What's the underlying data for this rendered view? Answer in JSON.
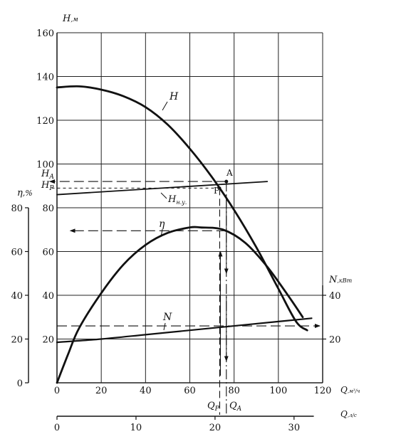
{
  "chart_data": {
    "type": "line",
    "axes": {
      "H": {
        "label": "H,м",
        "ticks": [
          0,
          20,
          40,
          60,
          80,
          100,
          120,
          140,
          160
        ],
        "range": [
          0,
          160
        ]
      },
      "eta": {
        "label": "η,%",
        "ticks": [
          0,
          20,
          40,
          60,
          80
        ],
        "range": [
          0,
          80
        ]
      },
      "N": {
        "label": "N,кВт",
        "ticks": [
          20,
          40
        ],
        "range": [
          0,
          160
        ]
      },
      "Q_m3h": {
        "label": "Q,м³/ч",
        "ticks": [
          0,
          20,
          40,
          60,
          80,
          100,
          120
        ],
        "range": [
          0,
          120
        ]
      },
      "Q_ls": {
        "label": "Q,л/с",
        "ticks": [
          0,
          10,
          20,
          30
        ]
      }
    },
    "series": [
      {
        "name": "H",
        "axis": "H",
        "points": [
          [
            0,
            135
          ],
          [
            10,
            135.5
          ],
          [
            20,
            134
          ],
          [
            30,
            131
          ],
          [
            40,
            126
          ],
          [
            50,
            118
          ],
          [
            60,
            107
          ],
          [
            70,
            94
          ],
          [
            80,
            79
          ],
          [
            90,
            62
          ],
          [
            100,
            43
          ],
          [
            108,
            28
          ],
          [
            113,
            24
          ]
        ]
      },
      {
        "name": "Hн.у.",
        "axis": "H",
        "points": [
          [
            0,
            86
          ],
          [
            95,
            92
          ]
        ]
      },
      {
        "name": "η",
        "axis": "eta",
        "points": [
          [
            0,
            0
          ],
          [
            5,
            13
          ],
          [
            10,
            25
          ],
          [
            20,
            41
          ],
          [
            30,
            54
          ],
          [
            40,
            63
          ],
          [
            50,
            68.5
          ],
          [
            60,
            71
          ],
          [
            65,
            71
          ],
          [
            75,
            70
          ],
          [
            85,
            64
          ],
          [
            95,
            53
          ],
          [
            105,
            39
          ],
          [
            111,
            30
          ]
        ]
      },
      {
        "name": "N",
        "axis": "N",
        "points": [
          [
            0,
            18.5
          ],
          [
            20,
            20
          ],
          [
            40,
            22
          ],
          [
            60,
            24
          ],
          [
            80,
            26
          ],
          [
            100,
            28
          ],
          [
            115,
            29.5
          ]
        ]
      }
    ],
    "annotations": [
      {
        "text": "A",
        "x": 78,
        "y": 92,
        "axis": "H"
      },
      {
        "text": "P",
        "x": 73,
        "y": 88,
        "axis": "H"
      },
      {
        "text": "HA",
        "axis": "H",
        "value": 92
      },
      {
        "text": "HP",
        "axis": "H",
        "value": 89
      },
      {
        "text": "QP",
        "axis": "Q_m3h",
        "value": 73.5
      },
      {
        "text": "QA",
        "axis": "Q_m3h",
        "value": 76.5
      }
    ],
    "labels": {
      "H_axis": {
        "main": "H",
        "unit": ",м"
      },
      "eta_axis": {
        "main": "η",
        "unit": ",%"
      },
      "N_axis": {
        "main": "N",
        "unit": ",кВт"
      },
      "Q_axis": {
        "main": "Q",
        "unit": ",м³/ч"
      },
      "Q2_axis": {
        "main": "Q",
        "unit": ",л/с"
      },
      "H_curve": "H",
      "eta_curve": "η",
      "N_curve": "N",
      "Hnu_main": "H",
      "Hnu_sub": "н.у.",
      "A_point": "A",
      "P_point": "P",
      "HA_main": "H",
      "HA_sub": "A",
      "HP_main": "H",
      "HP_sub": "P",
      "QP_main": "Q",
      "QP_sub": "P",
      "QA_main": "Q",
      "QA_sub": "A"
    },
    "grid": true
  }
}
